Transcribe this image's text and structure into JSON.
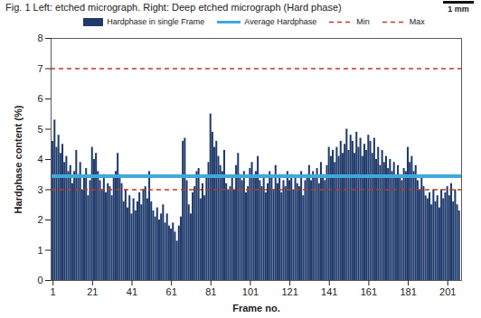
{
  "chart_data": {
    "type": "bar",
    "caption": "Fig. 1  Left: etched micrograph. Right: Deep etched micrograph (Hard phase)",
    "scale_label": "1 mm",
    "xlabel": "Frame no.",
    "ylabel": "Hardphase content (%)",
    "x": [
      1,
      2,
      3,
      4,
      5,
      6,
      7,
      8,
      9,
      10,
      11,
      12,
      13,
      14,
      15,
      16,
      17,
      18,
      19,
      20,
      21,
      22,
      23,
      24,
      25,
      26,
      27,
      28,
      29,
      30,
      31,
      32,
      33,
      34,
      35,
      36,
      37,
      38,
      39,
      40,
      41,
      42,
      43,
      44,
      45,
      46,
      47,
      48,
      49,
      50,
      51,
      52,
      53,
      54,
      55,
      56,
      57,
      58,
      59,
      60,
      61,
      62,
      63,
      64,
      65,
      66,
      67,
      68,
      69,
      70,
      71,
      72,
      73,
      74,
      75,
      76,
      77,
      78,
      79,
      80,
      81,
      82,
      83,
      84,
      85,
      86,
      87,
      88,
      89,
      90,
      91,
      92,
      93,
      94,
      95,
      96,
      97,
      98,
      99,
      100,
      101,
      102,
      103,
      104,
      105,
      106,
      107,
      108,
      109,
      110,
      111,
      112,
      113,
      114,
      115,
      116,
      117,
      118,
      119,
      120,
      121,
      122,
      123,
      124,
      125,
      126,
      127,
      128,
      129,
      130,
      131,
      132,
      133,
      134,
      135,
      136,
      137,
      138,
      139,
      140,
      141,
      142,
      143,
      144,
      145,
      146,
      147,
      148,
      149,
      150,
      151,
      152,
      153,
      154,
      155,
      156,
      157,
      158,
      159,
      160,
      161,
      162,
      163,
      164,
      165,
      166,
      167,
      168,
      169,
      170,
      171,
      172,
      173,
      174,
      175,
      176,
      177,
      178,
      179,
      180,
      181,
      182,
      183,
      184,
      185,
      186,
      187,
      188,
      189,
      190,
      191,
      192,
      193,
      194,
      195,
      196,
      197,
      198,
      199,
      200,
      201,
      202,
      203,
      204,
      205,
      206,
      207
    ],
    "series": [
      {
        "name": "Hardphase in single Frame",
        "type": "bar",
        "color": "#1f3a6b",
        "values": [
          4.6,
          5.3,
          4.4,
          4.8,
          4.2,
          4.5,
          3.9,
          4.1,
          3.6,
          3.8,
          3.2,
          3.6,
          4.3,
          3.5,
          3.9,
          3.0,
          3.4,
          3.7,
          2.8,
          3.3,
          4.4,
          4.0,
          4.2,
          3.6,
          3.3,
          3.0,
          3.5,
          2.9,
          3.2,
          3.1,
          2.8,
          3.4,
          3.6,
          4.2,
          3.5,
          3.2,
          2.6,
          3.0,
          2.4,
          2.8,
          2.2,
          2.7,
          2.3,
          2.6,
          2.9,
          2.5,
          3.0,
          3.1,
          2.7,
          3.6,
          2.6,
          2.3,
          2.1,
          2.4,
          2.0,
          2.2,
          2.5,
          1.9,
          2.2,
          1.8,
          1.7,
          1.9,
          1.6,
          1.3,
          1.8,
          2.1,
          4.6,
          4.7,
          3.3,
          2.5,
          2.2,
          2.9,
          3.1,
          3.6,
          3.7,
          2.7,
          3.2,
          2.8,
          3.4,
          3.9,
          5.5,
          4.9,
          4.4,
          4.6,
          4.1,
          3.8,
          3.6,
          4.3,
          3.2,
          3.0,
          3.1,
          3.4,
          3.0,
          3.8,
          4.2,
          3.5,
          3.3,
          3.6,
          2.9,
          3.1,
          3.7,
          3.9,
          3.4,
          3.6,
          4.1,
          3.3,
          3.1,
          3.5,
          2.9,
          3.2,
          3.6,
          3.4,
          3.0,
          3.8,
          3.2,
          3.5,
          2.9,
          3.3,
          3.1,
          3.6,
          3.3,
          3.5,
          3.0,
          3.4,
          3.2,
          3.1,
          3.6,
          2.8,
          3.3,
          3.5,
          3.8,
          3.3,
          3.6,
          3.4,
          3.7,
          3.2,
          3.9,
          3.5,
          3.3,
          3.8,
          4.4,
          4.1,
          4.3,
          3.9,
          4.4,
          4.1,
          4.6,
          4.2,
          4.5,
          5.0,
          4.3,
          4.8,
          4.6,
          4.2,
          4.9,
          4.4,
          4.7,
          4.1,
          4.5,
          4.3,
          4.8,
          4.6,
          4.2,
          4.7,
          4.0,
          4.4,
          3.8,
          4.3,
          3.9,
          4.1,
          3.7,
          4.0,
          3.6,
          3.9,
          3.4,
          3.8,
          3.5,
          3.3,
          3.7,
          3.6,
          4.4,
          3.9,
          4.1,
          3.6,
          3.8,
          3.3,
          3.0,
          3.4,
          3.1,
          2.8,
          2.7,
          2.9,
          2.5,
          3.0,
          2.6,
          2.8,
          2.4,
          3.0,
          2.7,
          2.9,
          3.1,
          2.8,
          3.2,
          2.6,
          3.0,
          2.5,
          2.3
        ]
      }
    ],
    "hlines": [
      {
        "name": "Average Hardphase",
        "value": 3.45,
        "color": "#3fa9dd",
        "line_style": "solid"
      },
      {
        "name": "Min",
        "value": 3,
        "color": "#c0392b",
        "line_style": "dashed"
      },
      {
        "name": "Max",
        "value": 7,
        "color": "#c0392b",
        "line_style": "dashed"
      }
    ],
    "xlim": [
      0,
      208
    ],
    "xticks": [
      1,
      21,
      41,
      61,
      81,
      101,
      121,
      141,
      161,
      181,
      201
    ],
    "ylim": [
      0,
      8
    ],
    "yticks": [
      0,
      1,
      2,
      3,
      4,
      5,
      6,
      7,
      8
    ],
    "grid": false,
    "legend": "top"
  }
}
